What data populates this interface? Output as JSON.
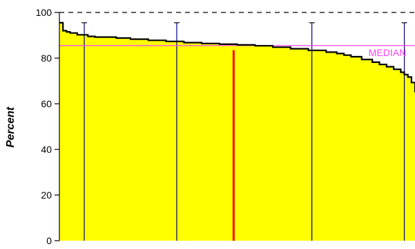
{
  "chart_data": {
    "type": "area",
    "title": "",
    "xlabel": "",
    "ylabel": "Percent",
    "ylim": [
      0,
      100
    ],
    "yticks": [
      0,
      20,
      40,
      60,
      80,
      100
    ],
    "grid": false,
    "rank_x": [
      0,
      1,
      2,
      3,
      5,
      8,
      10,
      16,
      20,
      25,
      30,
      35,
      40,
      45,
      50,
      55,
      60,
      65,
      70,
      75,
      78,
      80,
      82,
      85,
      88,
      90,
      92,
      94,
      96,
      97,
      98,
      99,
      100
    ],
    "values": [
      95.5,
      92,
      91.5,
      91,
      90.2,
      89.5,
      89.2,
      88.8,
      88.3,
      87.8,
      87.3,
      86.8,
      86.4,
      86.1,
      85.8,
      85.4,
      84.8,
      84.1,
      83.4,
      82.6,
      82.0,
      81.3,
      80.6,
      79.4,
      78.2,
      77.2,
      76.2,
      75.1,
      73.8,
      72.8,
      71.7,
      69.3,
      65.0
    ],
    "median": 85.5,
    "median_label": "MEDIAN",
    "highlight_rank": 49,
    "highlight_value": 83.5,
    "marker_ranks": [
      7,
      33,
      71,
      97
    ],
    "marker_height": 95.5,
    "colors": {
      "fill": "#ffff00",
      "median_line": "#ff40ff",
      "highlight_bar": "#ff0000",
      "marker_line": "#000080",
      "top_line": "#000000"
    }
  }
}
